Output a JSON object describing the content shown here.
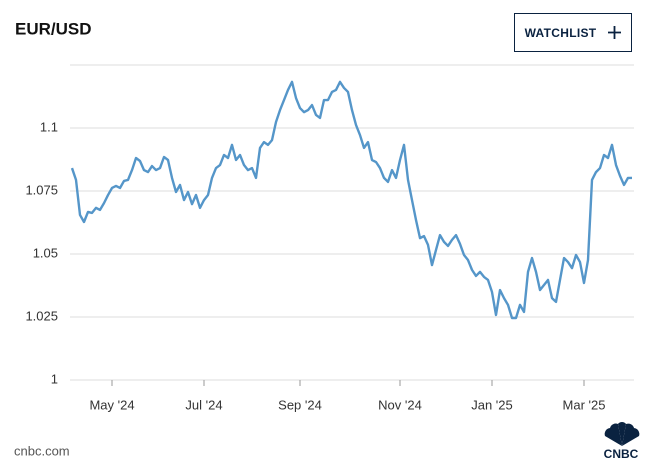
{
  "header": {
    "button": "WATCHLIST"
  },
  "footer": {
    "source": "cnbc.com",
    "logo": "CNBC"
  },
  "chart_data": {
    "type": "line",
    "title": "EUR/USD",
    "categories": [
      null,
      null,
      null,
      null,
      null,
      null,
      null,
      null,
      null,
      null,
      "May '24",
      null,
      null,
      null,
      null,
      null,
      null,
      null,
      null,
      null,
      null,
      null,
      null,
      null,
      null,
      null,
      null,
      null,
      null,
      null,
      null,
      null,
      null,
      "Jul '24",
      null,
      null,
      null,
      null,
      null,
      null,
      null,
      null,
      null,
      null,
      null,
      null,
      null,
      null,
      null,
      null,
      null,
      null,
      null,
      null,
      null,
      null,
      null,
      "Sep '24",
      null,
      null,
      null,
      null,
      null,
      null,
      null,
      null,
      null,
      null,
      null,
      null,
      null,
      null,
      null,
      null,
      null,
      null,
      null,
      null,
      null,
      null,
      null,
      null,
      "Nov '24",
      null,
      null,
      null,
      null,
      null,
      null,
      null,
      null,
      null,
      null,
      null,
      null,
      null,
      null,
      null,
      null,
      null,
      null,
      null,
      null,
      null,
      null,
      "Jan '25",
      null,
      null,
      null,
      null,
      null,
      null,
      null,
      null,
      null,
      null,
      null,
      null,
      null,
      null,
      null,
      null,
      null,
      null,
      null,
      null,
      null,
      null,
      "Mar '25",
      null,
      null,
      null,
      null,
      null,
      null,
      null,
      null,
      null,
      null,
      null,
      null
    ],
    "series": [
      {
        "name": "EUR/USD",
        "color": "#5596c9",
        "values": [
          1.0841,
          1.0794,
          1.0655,
          1.0627,
          1.0667,
          1.0663,
          1.0683,
          1.0675,
          1.0702,
          1.0734,
          1.0762,
          1.077,
          1.0762,
          1.079,
          1.0794,
          1.0833,
          1.0881,
          1.0869,
          1.0833,
          1.0825,
          1.0849,
          1.0833,
          1.0841,
          1.0885,
          1.0873,
          1.0802,
          1.0746,
          1.0774,
          1.0714,
          1.0746,
          1.0698,
          1.0734,
          1.0683,
          1.0714,
          1.0734,
          1.0802,
          1.0841,
          1.0853,
          1.0893,
          1.0881,
          1.0933,
          1.0873,
          1.0893,
          1.0853,
          1.0833,
          1.0841,
          1.0802,
          1.0921,
          1.0944,
          1.0933,
          1.0952,
          1.1024,
          1.1071,
          1.1111,
          1.1151,
          1.1183,
          1.1119,
          1.1079,
          1.1063,
          1.1071,
          1.1091,
          1.1052,
          1.104,
          1.1111,
          1.1111,
          1.1143,
          1.1151,
          1.1183,
          1.1159,
          1.1143,
          1.1071,
          1.1012,
          1.0972,
          1.0921,
          1.0944,
          1.0873,
          1.0865,
          1.0841,
          1.0802,
          1.0786,
          1.0833,
          1.0802,
          1.0873,
          1.0933,
          1.0794,
          1.0714,
          1.0635,
          1.0563,
          1.0571,
          1.0536,
          1.0456,
          1.0516,
          1.0575,
          1.0548,
          1.0532,
          1.0556,
          1.0575,
          1.054,
          1.0496,
          1.0476,
          1.0437,
          1.0413,
          1.0429,
          1.0409,
          1.0397,
          1.0349,
          1.0258,
          1.0357,
          1.0325,
          1.0298,
          1.0246,
          1.0246,
          1.0298,
          1.027,
          1.0429,
          1.0484,
          1.0429,
          1.0357,
          1.0377,
          1.0397,
          1.0325,
          1.031,
          1.0397,
          1.0484,
          1.0468,
          1.0444,
          1.0496,
          1.0468,
          1.0385,
          1.0476,
          1.0794,
          1.0825,
          1.0841,
          1.0893,
          1.0881,
          1.0933,
          1.0853,
          1.081,
          1.0774,
          1.0802,
          1.0802
        ]
      }
    ],
    "ylim": [
      1,
      1.125
    ],
    "yticks": [
      1,
      1.025,
      1.05,
      1.075,
      1.1
    ],
    "grid": true
  }
}
